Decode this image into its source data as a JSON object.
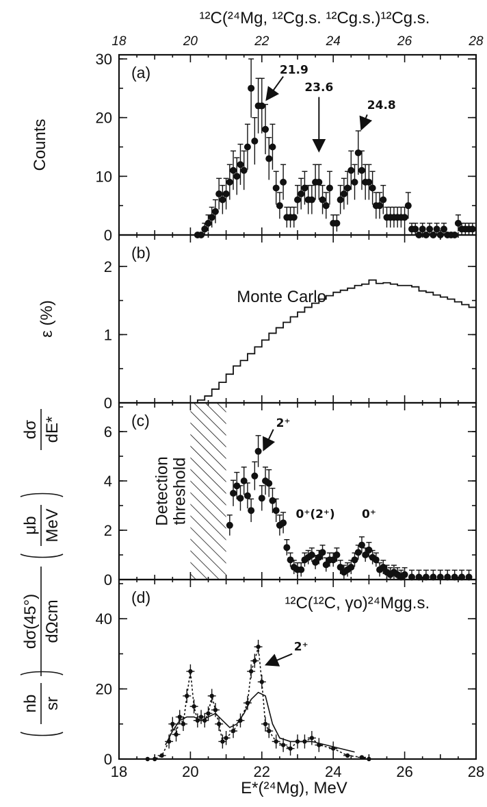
{
  "figure": {
    "top_title": "¹²C(²⁴Mg, ¹²Cg.s. ¹²Cg.s.)¹²Cg.s.",
    "top_ticks": [
      "18",
      "20",
      "22",
      "24",
      "26",
      "28"
    ],
    "bottom_ticks": [
      "18",
      "20",
      "22",
      "24",
      "26",
      "28"
    ],
    "xlabel": "E*(²⁴Mg), MeV"
  },
  "chart_data": [
    {
      "type": "scatter",
      "panel_label": "(a)",
      "ylabel": "Counts",
      "xlim": [
        18,
        28
      ],
      "ylim": [
        0,
        30
      ],
      "yticks": [
        "0",
        "10",
        "20",
        "30"
      ],
      "annotations": [
        {
          "text": "21.9",
          "x": 22.2,
          "y": 27
        },
        {
          "text": "23.6",
          "x": 23.6,
          "y": 23.5
        },
        {
          "text": "24.8",
          "x": 24.8,
          "y": 21
        }
      ],
      "series": [
        {
          "x": [
            20.2,
            20.3,
            20.4,
            20.5,
            20.6,
            20.7,
            20.8,
            20.9,
            21.0,
            21.1,
            21.2,
            21.3,
            21.4,
            21.5,
            21.6,
            21.7,
            21.8,
            21.9,
            22.0,
            22.1,
            22.2,
            22.3,
            22.4,
            22.5,
            22.6,
            22.7,
            22.8,
            22.9,
            23.0,
            23.1,
            23.2,
            23.3,
            23.4,
            23.5,
            23.6,
            23.7,
            23.8,
            23.9,
            24.0,
            24.1,
            24.2,
            24.3,
            24.4,
            24.5,
            24.6,
            24.7,
            24.8,
            24.9,
            25.0,
            25.1,
            25.2,
            25.3,
            25.4,
            25.5,
            25.6,
            25.7,
            25.8,
            25.9,
            26.0,
            26.1,
            26.2,
            26.3,
            26.4,
            26.5,
            26.6,
            26.7,
            26.8,
            26.9,
            27.0,
            27.1,
            27.2,
            27.3,
            27.4,
            27.5,
            27.6,
            27.7,
            27.8,
            27.9
          ],
          "y": [
            0,
            0,
            1,
            2,
            3,
            4,
            7,
            6,
            7,
            9,
            11,
            10,
            12,
            11,
            15,
            25,
            16,
            22,
            22,
            18,
            13,
            15,
            8,
            5,
            9,
            3,
            3,
            3,
            6,
            7,
            8,
            6,
            6,
            9,
            9,
            6,
            5,
            8,
            2,
            2,
            6,
            7,
            8,
            11,
            9,
            14,
            11,
            9,
            9,
            8,
            5,
            5,
            6,
            3,
            3,
            3,
            3,
            3,
            3,
            5,
            1,
            1,
            0,
            1,
            0,
            1,
            0,
            1,
            0,
            1,
            0,
            0,
            0,
            2,
            1,
            1,
            1,
            1
          ]
        }
      ]
    },
    {
      "type": "line",
      "panel_label": "(b)",
      "ylabel": "ε (%)",
      "annotation": "Monte Carlo",
      "xlim": [
        18,
        28
      ],
      "ylim": [
        0,
        2.4
      ],
      "yticks": [
        "0",
        "1",
        "2"
      ],
      "series": [
        {
          "name": "Monte Carlo",
          "x": [
            20.0,
            20.2,
            20.4,
            20.6,
            20.8,
            21.0,
            21.2,
            21.4,
            21.6,
            21.8,
            22.0,
            22.2,
            22.4,
            22.6,
            22.8,
            23.0,
            23.2,
            23.4,
            23.6,
            23.8,
            24.0,
            24.2,
            24.4,
            24.6,
            24.8,
            25.0,
            25.2,
            25.4,
            25.6,
            25.8,
            26.0,
            26.2,
            26.4,
            26.6,
            26.8,
            27.0,
            27.2,
            27.4,
            27.6,
            27.8,
            28.0
          ],
          "y": [
            0.0,
            0.04,
            0.1,
            0.2,
            0.3,
            0.42,
            0.54,
            0.62,
            0.72,
            0.82,
            0.92,
            1.02,
            1.1,
            1.18,
            1.26,
            1.33,
            1.4,
            1.46,
            1.52,
            1.57,
            1.62,
            1.65,
            1.68,
            1.72,
            1.74,
            1.8,
            1.75,
            1.76,
            1.74,
            1.72,
            1.72,
            1.7,
            1.64,
            1.62,
            1.58,
            1.55,
            1.52,
            1.48,
            1.44,
            1.4,
            1.36
          ]
        }
      ]
    },
    {
      "type": "scatter",
      "panel_label": "(c)",
      "ylabel_main": "dσ/dE*",
      "ylabel_num": "μb",
      "ylabel_den": "MeV",
      "threshold_text": [
        "Detection",
        "threshold"
      ],
      "threshold_range": [
        20.0,
        21.0
      ],
      "annotations": [
        "2⁺",
        "0⁺(2⁺)",
        "0⁺"
      ],
      "xlim": [
        18,
        28
      ],
      "ylim": [
        0,
        7
      ],
      "yticks": [
        "0",
        "2",
        "4",
        "6"
      ],
      "series": [
        {
          "x": [
            21.1,
            21.2,
            21.3,
            21.4,
            21.5,
            21.6,
            21.7,
            21.8,
            21.9,
            22.0,
            22.1,
            22.2,
            22.3,
            22.4,
            22.5,
            22.6,
            22.7,
            22.8,
            22.9,
            23.0,
            23.1,
            23.2,
            23.3,
            23.4,
            23.5,
            23.6,
            23.7,
            23.8,
            23.9,
            24.0,
            24.1,
            24.2,
            24.3,
            24.4,
            24.5,
            24.6,
            24.7,
            24.8,
            24.9,
            25.0,
            25.1,
            25.2,
            25.3,
            25.4,
            25.5,
            25.6,
            25.7,
            25.8,
            25.9,
            26.0,
            26.2,
            26.4,
            26.6,
            26.8,
            27.0,
            27.2,
            27.4,
            27.6,
            27.8
          ],
          "y": [
            2.2,
            3.5,
            3.8,
            3.3,
            4.0,
            3.4,
            2.8,
            4.2,
            5.2,
            3.3,
            4.0,
            3.9,
            3.2,
            2.8,
            2.2,
            2.3,
            1.3,
            0.8,
            0.5,
            0.4,
            0.4,
            0.8,
            0.9,
            1.0,
            0.7,
            0.9,
            1.1,
            0.6,
            0.8,
            0.8,
            1.0,
            0.5,
            0.3,
            0.4,
            0.5,
            0.8,
            1.1,
            1.4,
            1.0,
            1.2,
            0.9,
            0.8,
            0.4,
            0.5,
            0.3,
            0.2,
            0.3,
            0.2,
            0.1,
            0.2,
            0.1,
            0.1,
            0.1,
            0.1,
            0.1,
            0.1,
            0.1,
            0.1,
            0.1
          ]
        }
      ]
    },
    {
      "type": "line",
      "panel_label": "(d)",
      "ylabel_main": "dσ(45°)/dΩcm",
      "ylabel_num": "nb",
      "ylabel_den": "sr",
      "annotation": "¹²C(¹²C, γo)²⁴Mgg.s.",
      "peak_label": "2⁺",
      "xlim": [
        18,
        28
      ],
      "ylim": [
        0,
        50
      ],
      "yticks": [
        "0",
        "20",
        "40"
      ],
      "series": [
        {
          "name": "data",
          "x": [
            18.8,
            19.0,
            19.2,
            19.4,
            19.5,
            19.6,
            19.7,
            19.8,
            19.9,
            20.0,
            20.1,
            20.2,
            20.3,
            20.4,
            20.5,
            20.6,
            20.7,
            20.8,
            20.9,
            21.0,
            21.2,
            21.4,
            21.6,
            21.7,
            21.8,
            21.9,
            22.0,
            22.1,
            22.2,
            22.4,
            22.6,
            22.8,
            23.0,
            23.2,
            23.4,
            23.6,
            24.0,
            24.4,
            24.8,
            25.0
          ],
          "y": [
            0,
            0,
            1,
            5,
            10,
            7,
            12,
            10,
            18,
            25,
            15,
            11,
            12,
            11,
            13,
            18,
            14,
            10,
            5,
            6,
            8,
            11,
            16,
            25,
            28,
            32,
            22,
            10,
            8,
            5,
            4,
            3,
            5,
            5,
            6,
            4,
            3,
            1,
            0.5,
            0
          ]
        },
        {
          "name": "smooth",
          "x": [
            19.3,
            19.5,
            19.7,
            19.9,
            20.1,
            20.3,
            20.5,
            20.7,
            20.9,
            21.1,
            21.3,
            21.5,
            21.7,
            21.9,
            22.1,
            22.3,
            22.5,
            22.8,
            23.1,
            23.4,
            23.8,
            24.2,
            24.6
          ],
          "y": [
            4,
            8,
            11,
            12,
            12,
            11,
            12,
            13,
            11,
            9,
            10,
            13,
            17,
            19,
            18,
            10,
            6,
            5,
            5,
            5,
            4,
            3,
            2
          ]
        }
      ]
    }
  ]
}
